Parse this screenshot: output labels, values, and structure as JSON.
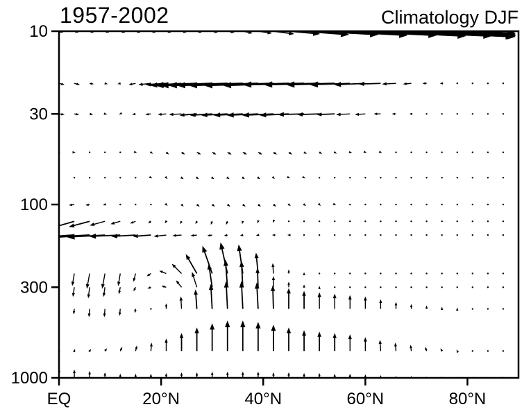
{
  "figure": {
    "title_left": "1957-2002",
    "title_right": "Climatology DJF",
    "background": "#ffffff",
    "frame_color": "#000000"
  },
  "chart_data": {
    "type": "quiver",
    "title": "1957-2002",
    "subtitle": "Climatology DJF",
    "xlabel": "",
    "ylabel": "",
    "arrow_color": "#000000",
    "x_axis": {
      "range": [
        0,
        90
      ],
      "ticks": [
        0,
        20,
        40,
        60,
        80
      ],
      "tick_labels": [
        "EQ",
        "20°N",
        "40°N",
        "60°N",
        "80°N"
      ]
    },
    "y_axis": {
      "scale": "log",
      "inverted": true,
      "range": [
        10,
        1000
      ],
      "ticks": [
        10,
        30,
        100,
        300,
        1000
      ],
      "tick_labels": [
        "10",
        "30",
        "100",
        "300",
        "1000"
      ]
    },
    "latitudes_deg_n": [
      0,
      3,
      6,
      9,
      12,
      15,
      18,
      21,
      24,
      27,
      30,
      33,
      36,
      39,
      42,
      45,
      48,
      51,
      54,
      57,
      60,
      63,
      66,
      69,
      72,
      75,
      78,
      81,
      84,
      87
    ],
    "pressure_levels": [
      10,
      20,
      30,
      50,
      70,
      100,
      125,
      150,
      250,
      300,
      400,
      700,
      1000
    ],
    "u": [
      [
        6,
        6,
        6,
        6,
        7,
        7,
        7,
        7,
        7,
        7,
        8,
        10,
        14,
        20,
        30,
        45,
        65,
        85,
        105,
        125,
        145,
        160,
        170,
        150,
        128,
        106,
        85,
        62,
        40,
        18
      ],
      [
        8,
        8,
        6,
        4,
        -4,
        -10,
        -18,
        -30,
        -45,
        -60,
        -75,
        -85,
        -95,
        -100,
        -100,
        -95,
        -88,
        -80,
        -70,
        -58,
        -45,
        -32,
        -20,
        -12,
        -6,
        -3,
        -1,
        -1,
        -1,
        -1
      ],
      [
        8,
        7,
        5,
        3,
        -2,
        -5,
        -8,
        -12,
        -18,
        -25,
        -32,
        -38,
        -42,
        -45,
        -45,
        -42,
        -38,
        -32,
        -26,
        -20,
        -15,
        -10,
        -6,
        -3,
        -1,
        -1,
        -1,
        -1,
        -1,
        -1
      ],
      [
        2,
        2,
        1,
        1,
        1,
        2,
        3,
        4,
        5,
        6,
        6,
        6,
        6,
        6,
        5,
        5,
        4,
        4,
        3,
        3,
        2,
        2,
        1,
        1,
        1,
        1,
        0,
        0,
        0,
        0
      ],
      [
        1,
        1,
        1,
        1,
        1,
        1,
        2,
        2,
        3,
        3,
        3,
        3,
        3,
        3,
        2,
        2,
        2,
        1,
        1,
        1,
        1,
        0,
        0,
        0,
        0,
        0,
        0,
        0,
        0,
        0
      ],
      [
        -8,
        -8,
        -6,
        -3,
        -1,
        0,
        1,
        2,
        3,
        4,
        4,
        4,
        4,
        4,
        4,
        3,
        3,
        2,
        2,
        1,
        1,
        1,
        0,
        0,
        0,
        0,
        0,
        0,
        0,
        0
      ],
      [
        -30,
        -35,
        -30,
        -22,
        -14,
        -8,
        -4,
        -2,
        -2,
        -2,
        -2,
        -2,
        -1,
        -1,
        -1,
        -1,
        0,
        0,
        0,
        0,
        0,
        0,
        0,
        0,
        0,
        0,
        0,
        0,
        0,
        0
      ],
      [
        -60,
        -70,
        -65,
        -55,
        -45,
        -35,
        -26,
        -18,
        -13,
        -9,
        -7,
        -5,
        -4,
        -3,
        -2,
        -2,
        -1,
        -1,
        -1,
        0,
        0,
        0,
        0,
        0,
        0,
        0,
        0,
        0,
        0,
        0
      ],
      [
        -2,
        -3,
        -4,
        -4,
        -3,
        -3,
        -6,
        -10,
        -14,
        -16,
        -14,
        -10,
        -6,
        -3,
        -1,
        0,
        0,
        0,
        0,
        0,
        0,
        0,
        0,
        0,
        0,
        0,
        0,
        0,
        0,
        0
      ],
      [
        -1,
        -2,
        -2,
        -2,
        -2,
        -3,
        -5,
        -7,
        -8,
        -7,
        -5,
        -3,
        -2,
        -1,
        0,
        0,
        0,
        0,
        0,
        0,
        0,
        0,
        0,
        0,
        0,
        0,
        0,
        0,
        0,
        0
      ],
      [
        1,
        -1,
        -1,
        -1,
        -1,
        -1,
        0,
        0,
        -1,
        -2,
        -2,
        -2,
        -2,
        -2,
        -1,
        0,
        0,
        0,
        0,
        0,
        0,
        0,
        0,
        0,
        0,
        0,
        0,
        0,
        0,
        0
      ],
      [
        0,
        1,
        2,
        3,
        3,
        2,
        1,
        0,
        0,
        0,
        0,
        0,
        0,
        0,
        0,
        0,
        0,
        0,
        0,
        0,
        0,
        -1,
        -1,
        -1,
        -2,
        -2,
        -1,
        0,
        0,
        0
      ],
      [
        0,
        0,
        0,
        0,
        0,
        0,
        0,
        0,
        0,
        0,
        0,
        0,
        0,
        0,
        0,
        0,
        0,
        0,
        0,
        0,
        0,
        0,
        0,
        0,
        0,
        0,
        0,
        0,
        0,
        0
      ]
    ],
    "w": [
      [
        -2,
        -2,
        -2,
        -2,
        -2,
        -2,
        -2,
        -2,
        -2,
        -2,
        -2,
        -2,
        -3,
        -3,
        -4,
        -4,
        -5,
        -5,
        -6,
        -6,
        -7,
        -7,
        -8,
        -8,
        -8,
        -7,
        -6,
        -5,
        -4,
        -3
      ],
      [
        -2,
        -2,
        -1,
        -1,
        -1,
        -2,
        -2,
        -2,
        -3,
        -3,
        -3,
        -3,
        -3,
        -3,
        -3,
        -3,
        -2,
        -2,
        -2,
        -2,
        -2,
        -1,
        -1,
        -1,
        0,
        0,
        0,
        0,
        0,
        0
      ],
      [
        -1,
        -1,
        -1,
        -1,
        -1,
        -1,
        -1,
        -1,
        -1,
        -2,
        -2,
        -2,
        -2,
        -2,
        -2,
        -2,
        -1,
        -1,
        -1,
        -1,
        -1,
        0,
        0,
        0,
        0,
        0,
        0,
        0,
        0,
        0
      ],
      [
        0,
        0,
        0,
        0,
        -1,
        -1,
        -2,
        -3,
        -3,
        -3,
        -3,
        -3,
        -3,
        -3,
        -3,
        -3,
        -2,
        -2,
        -2,
        -1,
        -1,
        -1,
        0,
        0,
        0,
        0,
        0,
        0,
        0,
        0
      ],
      [
        0,
        0,
        0,
        0,
        0,
        -1,
        -1,
        -2,
        -2,
        -2,
        -2,
        -2,
        -2,
        -2,
        -2,
        -1,
        -1,
        -1,
        0,
        0,
        0,
        0,
        0,
        0,
        0,
        0,
        0,
        0,
        0,
        0
      ],
      [
        -1,
        -1,
        -1,
        -1,
        0,
        0,
        -1,
        -2,
        -3,
        -3,
        -3,
        -3,
        -3,
        -3,
        -3,
        -2,
        -2,
        -2,
        -1,
        -1,
        0,
        0,
        0,
        0,
        0,
        0,
        0,
        0,
        0,
        0
      ],
      [
        -8,
        -10,
        -8,
        -6,
        -4,
        -3,
        -3,
        -3,
        -4,
        -4,
        -5,
        -5,
        -4,
        -3,
        -2,
        -1,
        -1,
        -1,
        0,
        0,
        0,
        0,
        0,
        0,
        0,
        0,
        0,
        0,
        0,
        0
      ],
      [
        -4,
        -5,
        -4,
        -3,
        -2,
        -2,
        -2,
        -2,
        -1,
        -1,
        -1,
        -1,
        -1,
        -1,
        0,
        0,
        0,
        0,
        0,
        0,
        0,
        0,
        0,
        0,
        0,
        0,
        0,
        0,
        0,
        0
      ],
      [
        -10,
        -18,
        -22,
        -22,
        -18,
        -12,
        -4,
        4,
        14,
        28,
        40,
        45,
        42,
        30,
        15,
        6,
        2,
        1,
        1,
        0,
        0,
        0,
        0,
        0,
        0,
        0,
        0,
        0,
        0,
        0
      ],
      [
        -8,
        -14,
        -16,
        -14,
        -10,
        -6,
        -2,
        2,
        10,
        22,
        34,
        40,
        38,
        28,
        16,
        8,
        4,
        2,
        1,
        1,
        1,
        1,
        0,
        0,
        0,
        0,
        0,
        0,
        0,
        0
      ],
      [
        2,
        -8,
        -12,
        -12,
        -10,
        -6,
        0,
        8,
        18,
        28,
        36,
        40,
        40,
        38,
        34,
        30,
        26,
        24,
        22,
        20,
        18,
        14,
        10,
        7,
        5,
        3,
        2,
        1,
        1,
        1
      ],
      [
        4,
        3,
        3,
        4,
        6,
        8,
        12,
        18,
        26,
        34,
        40,
        44,
        44,
        42,
        38,
        34,
        30,
        28,
        26,
        24,
        20,
        16,
        12,
        9,
        6,
        4,
        2,
        1,
        1,
        1
      ],
      [
        14,
        12,
        10,
        8,
        6,
        6,
        6,
        7,
        8,
        8,
        9,
        9,
        9,
        9,
        8,
        8,
        7,
        7,
        6,
        6,
        5,
        4,
        3,
        3,
        2,
        2,
        1,
        1,
        1,
        1
      ]
    ]
  }
}
